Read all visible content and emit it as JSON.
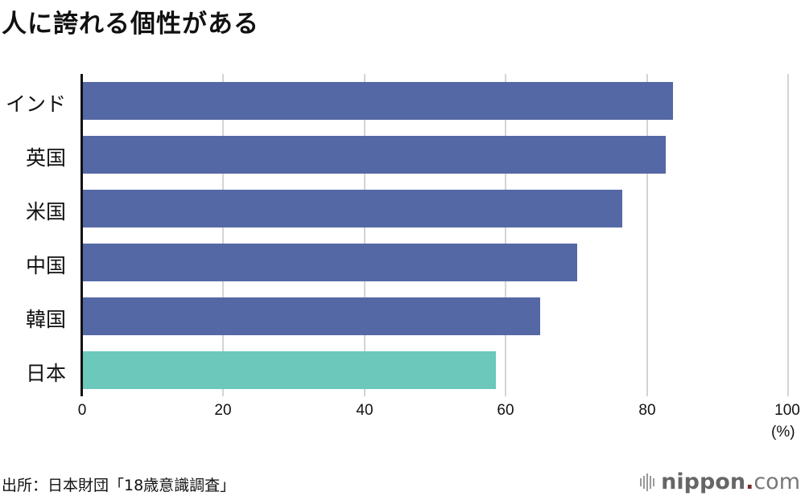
{
  "title": "人に誇れる個性がある",
  "source": "出所：日本財団「18歳意識調査」",
  "logo": {
    "name": "nippon",
    "dot": ".",
    "tld": "com"
  },
  "colors": {
    "default_bar": "#5568a6",
    "highlight_bar": "#6bc8bb",
    "grid": "#d4d4d4",
    "axis": "#111111"
  },
  "x_axis": {
    "ticks": [
      "0",
      "20",
      "40",
      "60",
      "80",
      "100"
    ],
    "unit": "(%)"
  },
  "chart_data": {
    "type": "bar",
    "orientation": "horizontal",
    "title": "人に誇れる個性がある",
    "categories": [
      "インド",
      "英国",
      "米国",
      "中国",
      "韓国",
      "日本"
    ],
    "values": [
      83.7,
      82.7,
      76.5,
      70.2,
      64.9,
      58.7
    ],
    "highlight": "日本",
    "xlabel": "(%)",
    "ylabel": "",
    "xlim": [
      0,
      100
    ],
    "xticks": [
      0,
      20,
      40,
      60,
      80,
      100
    ],
    "grid": true,
    "legend": null,
    "source": "出所：日本財団「18歳意識調査」"
  }
}
